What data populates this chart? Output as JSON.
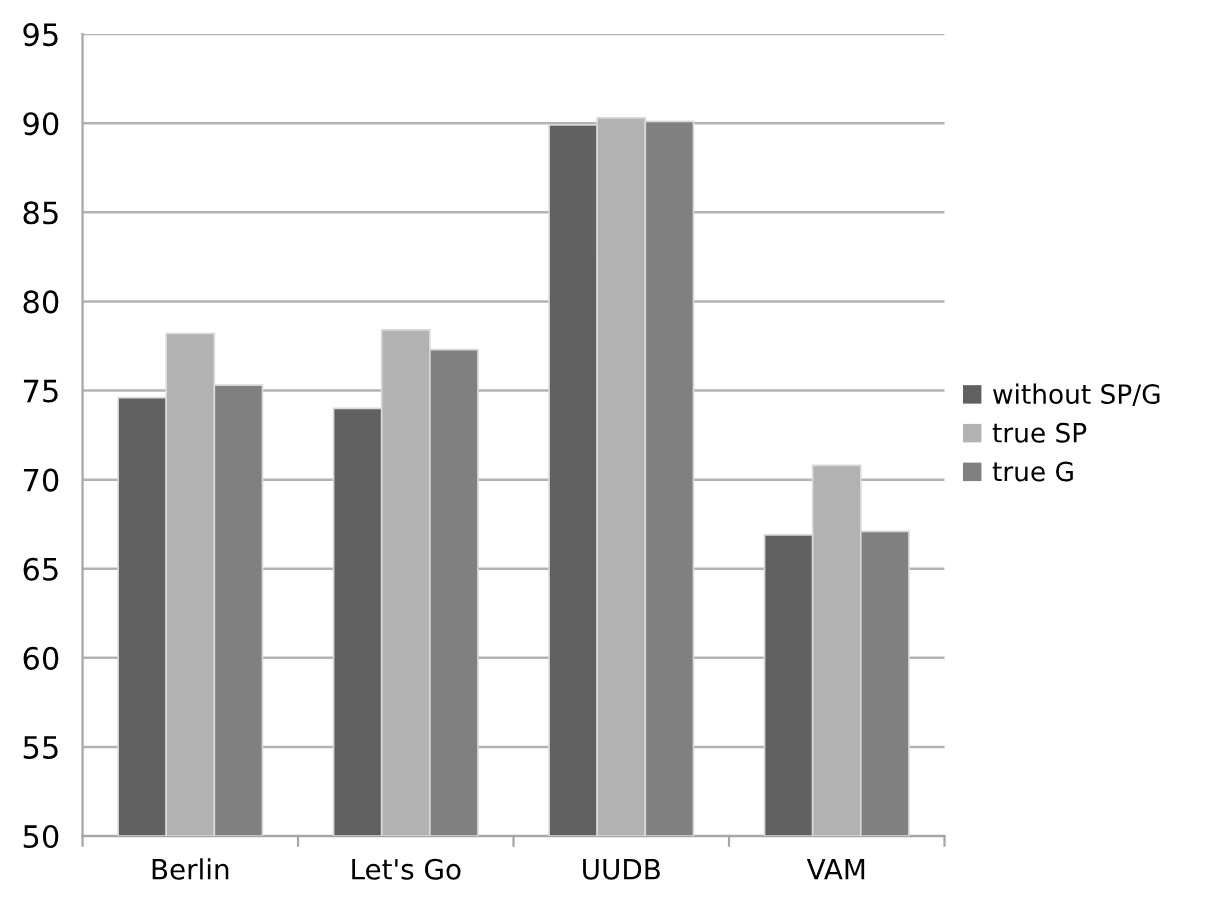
{
  "chart_data": {
    "type": "bar",
    "categories": [
      "Berlin",
      "Let's Go",
      "UUDB",
      "VAM"
    ],
    "series": [
      {
        "name": "without SP/G",
        "color": "#606060",
        "values": [
          74.6,
          74.0,
          89.9,
          66.9
        ]
      },
      {
        "name": "true SP",
        "color": "#b2b2b2",
        "values": [
          78.2,
          78.4,
          90.3,
          70.8
        ]
      },
      {
        "name": "true G",
        "color": "#808080",
        "values": [
          75.3,
          77.3,
          90.1,
          67.1
        ]
      }
    ],
    "ylim": [
      50,
      95
    ],
    "yticks": [
      50,
      55,
      60,
      65,
      70,
      75,
      80,
      85,
      90,
      95
    ],
    "grid": "y",
    "legend": "right"
  }
}
